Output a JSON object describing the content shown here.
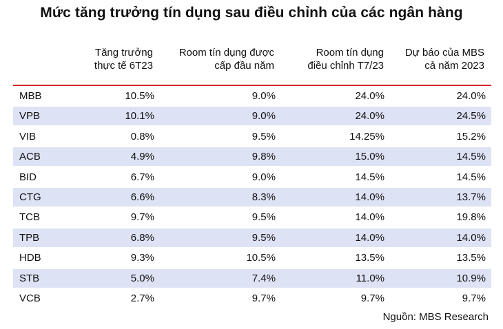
{
  "title": "Mức tăng trưởng tín dụng sau điều chỉnh của các ngân hàng",
  "source": "Nguồn: MBS Research",
  "colors": {
    "header_rule": "#d9242f",
    "shaded_row": "#dde2f4"
  },
  "chart_data": {
    "type": "table",
    "columns": [
      {
        "line1": "Tăng trưởng",
        "line2": "thực tế 6T23"
      },
      {
        "line1": "Room tín dụng được",
        "line2": "cấp đầu năm"
      },
      {
        "line1": "Room tín dụng",
        "line2": "điều chỉnh T7/23"
      },
      {
        "line1": "Dự báo của MBS",
        "line2": "cả năm 2023"
      }
    ],
    "rows": [
      {
        "bank": "MBB",
        "values": [
          "10.5%",
          "9.0%",
          "24.0%",
          "24.0%"
        ]
      },
      {
        "bank": "VPB",
        "values": [
          "10.1%",
          "9.0%",
          "24.0%",
          "24.5%"
        ]
      },
      {
        "bank": "VIB",
        "values": [
          "0.8%",
          "9.5%",
          "14.25%",
          "15.2%"
        ]
      },
      {
        "bank": "ACB",
        "values": [
          "4.9%",
          "9.8%",
          "15.0%",
          "14.5%"
        ]
      },
      {
        "bank": "BID",
        "values": [
          "6.7%",
          "9.0%",
          "14.5%",
          "14.5%"
        ]
      },
      {
        "bank": "CTG",
        "values": [
          "6.6%",
          "8.3%",
          "14.0%",
          "13.7%"
        ]
      },
      {
        "bank": "TCB",
        "values": [
          "9.7%",
          "9.5%",
          "14.0%",
          "19.8%"
        ]
      },
      {
        "bank": "TPB",
        "values": [
          "6.8%",
          "9.5%",
          "14.0%",
          "14.0%"
        ]
      },
      {
        "bank": "HDB",
        "values": [
          "9.3%",
          "10.5%",
          "13.5%",
          "13.5%"
        ]
      },
      {
        "bank": "STB",
        "values": [
          "5.0%",
          "7.4%",
          "11.0%",
          "10.9%"
        ]
      },
      {
        "bank": "VCB",
        "values": [
          "2.7%",
          "9.7%",
          "9.7%",
          "9.7%"
        ]
      }
    ]
  }
}
